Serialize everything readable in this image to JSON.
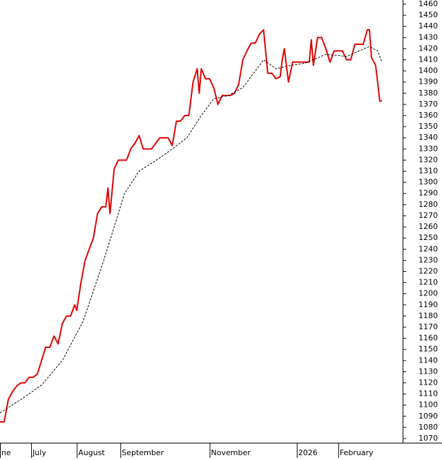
{
  "chart_data": {
    "type": "line",
    "series": [
      {
        "color": "#e00000",
        "line_style": "solid",
        "x": [
          0,
          2,
          4,
          6,
          8,
          10,
          12,
          14,
          16,
          18,
          20,
          22,
          24,
          26,
          28,
          30,
          32,
          34,
          36,
          37,
          39,
          41,
          43,
          45,
          47,
          49,
          51,
          52,
          53,
          55,
          57,
          59,
          61,
          63,
          65,
          67,
          69,
          71,
          73,
          75,
          77,
          79,
          81,
          83,
          85,
          87,
          89,
          91,
          93,
          95,
          96,
          97,
          99,
          101,
          103,
          105,
          107,
          109,
          111,
          113,
          115,
          117,
          119,
          121,
          123,
          125,
          127,
          129,
          131,
          133,
          135,
          136,
          137,
          139,
          141,
          143,
          145,
          147,
          149,
          150,
          151,
          153,
          155,
          157,
          159,
          161,
          163,
          165,
          167,
          169,
          171,
          173,
          175,
          177,
          178,
          179,
          181,
          183,
          184
        ],
        "values": [
          1085,
          1085,
          1105,
          1112,
          1117,
          1120,
          1120,
          1125,
          1125,
          1128,
          1140,
          1152,
          1152,
          1162,
          1155,
          1173,
          1180,
          1180,
          1190,
          1185,
          1210,
          1230,
          1240,
          1250,
          1272,
          1278,
          1278,
          1295,
          1272,
          1312,
          1320,
          1320,
          1320,
          1330,
          1335,
          1342,
          1330,
          1330,
          1330,
          1335,
          1340,
          1340,
          1340,
          1333,
          1355,
          1355,
          1360,
          1360,
          1390,
          1402,
          1380,
          1402,
          1393,
          1393,
          1385,
          1370,
          1378,
          1378,
          1378,
          1380,
          1388,
          1410,
          1418,
          1425,
          1425,
          1433,
          1437,
          1398,
          1398,
          1393,
          1395,
          1410,
          1420,
          1390,
          1408,
          1408,
          1408,
          1408,
          1408,
          1428,
          1405,
          1430,
          1430,
          1420,
          1408,
          1418,
          1418,
          1418,
          1410,
          1410,
          1424,
          1424,
          1424,
          1437,
          1437,
          1412,
          1405,
          1373,
          1373
        ]
      },
      {
        "color": "#000000",
        "line_style": "dashed",
        "x": [
          0,
          10,
          20,
          30,
          40,
          50,
          60,
          67,
          77,
          83,
          90,
          97,
          103,
          110,
          117,
          123,
          127,
          133,
          140,
          147,
          157,
          167,
          173,
          178,
          182,
          184
        ],
        "values": [
          1093,
          1105,
          1118,
          1140,
          1175,
          1230,
          1290,
          1310,
          1322,
          1330,
          1340,
          1360,
          1375,
          1378,
          1385,
          1400,
          1410,
          1402,
          1405,
          1407,
          1415,
          1413,
          1418,
          1422,
          1418,
          1408
        ]
      }
    ],
    "xlim": [
      0,
      194
    ],
    "xticks": [
      {
        "value": 0,
        "label": "ne"
      },
      {
        "value": 15,
        "label": "July"
      },
      {
        "value": 37,
        "label": "August"
      },
      {
        "value": 58,
        "label": "September"
      },
      {
        "value": 101,
        "label": "November"
      },
      {
        "value": 143,
        "label": "2026"
      },
      {
        "value": 163,
        "label": "February"
      }
    ],
    "ylim": [
      1070,
      1460
    ],
    "yticks": [
      1070,
      1080,
      1090,
      1100,
      1110,
      1120,
      1130,
      1140,
      1150,
      1160,
      1170,
      1180,
      1190,
      1200,
      1210,
      1220,
      1230,
      1240,
      1250,
      1260,
      1270,
      1280,
      1290,
      1300,
      1310,
      1320,
      1330,
      1340,
      1350,
      1360,
      1370,
      1380,
      1390,
      1400,
      1410,
      1420,
      1430,
      1440,
      1450,
      1460
    ],
    "y_axis_side": "right"
  }
}
